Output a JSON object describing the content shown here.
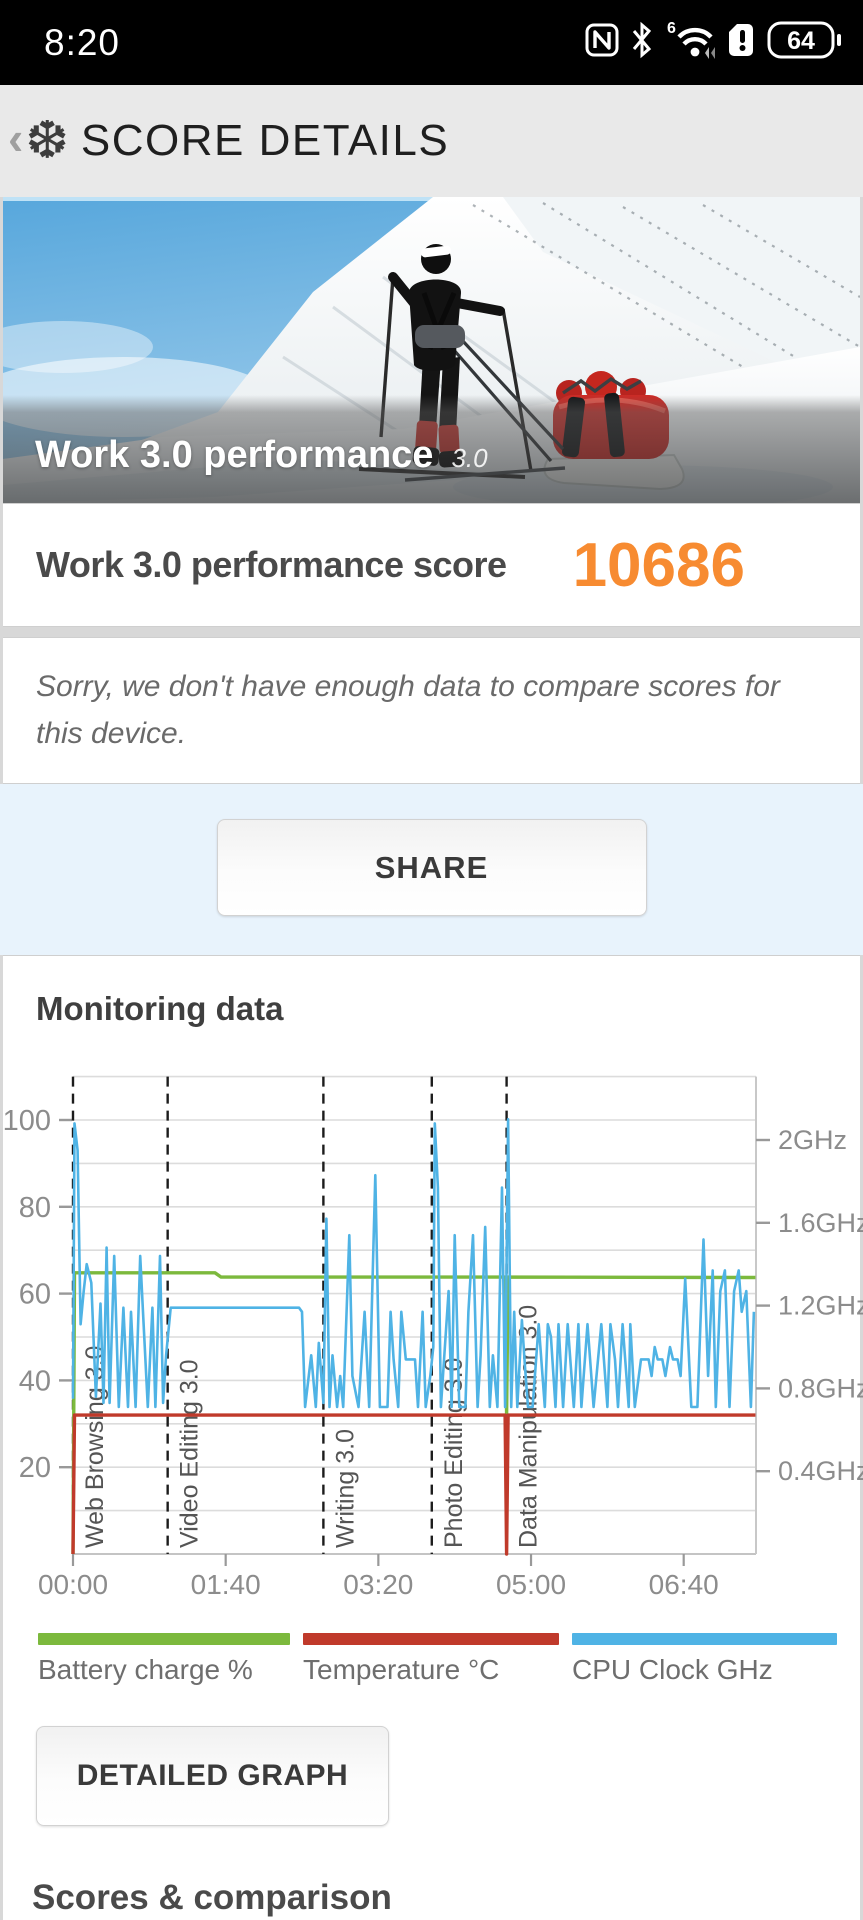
{
  "status_bar": {
    "time": "8:20",
    "battery_level": "64"
  },
  "header": {
    "back_glyph": "‹",
    "title": "SCORE DETAILS"
  },
  "hero": {
    "title": "Work 3.0 performance",
    "version": "3.0"
  },
  "score": {
    "label": "Work 3.0 performance score",
    "value": "10686",
    "accent_color": "#f78b31"
  },
  "note": {
    "text": "Sorry, we don't have enough data to compare scores for this device."
  },
  "share": {
    "label": "SHARE"
  },
  "monitoring": {
    "title": "Monitoring data",
    "detailed_button": "DETAILED GRAPH"
  },
  "scores_heading": "Scores & comparison",
  "chart_data": {
    "type": "line",
    "title": "Monitoring data",
    "x_axis": {
      "unit": "mm:ss",
      "range_seconds": [
        0,
        447
      ],
      "ticks": [
        {
          "t": 0,
          "label": "00:00"
        },
        {
          "t": 100,
          "label": "01:40"
        },
        {
          "t": 200,
          "label": "03:20"
        },
        {
          "t": 300,
          "label": "05:00"
        },
        {
          "t": 400,
          "label": "06:40"
        }
      ]
    },
    "left_axis": {
      "range": [
        0,
        110
      ],
      "ticks": [
        20,
        40,
        60,
        80,
        100
      ],
      "grid_step": 10
    },
    "right_axis": {
      "range_ghz": [
        0,
        2.3
      ],
      "ticks": [
        {
          "g": 0.4,
          "label": "0.4GHz"
        },
        {
          "g": 0.8,
          "label": "0.8GHz"
        },
        {
          "g": 1.2,
          "label": "1.2GHz"
        },
        {
          "g": 1.6,
          "label": "1.6GHz"
        },
        {
          "g": 2.0,
          "label": "2GHz"
        }
      ]
    },
    "sections": [
      {
        "label": "Web Browsing 3.0",
        "t": 0
      },
      {
        "label": "Video Editing 3.0",
        "t": 62
      },
      {
        "label": "Writing 3.0",
        "t": 164
      },
      {
        "label": "Photo Editing 3.0",
        "t": 235
      },
      {
        "label": "Data Manipulation 3.0",
        "t": 284
      }
    ],
    "series": [
      {
        "name": "Battery charge %",
        "color": "#7cb93d",
        "axis": "left",
        "points": [
          [
            0,
            0
          ],
          [
            1,
            64.8
          ],
          [
            93,
            64.8
          ],
          [
            97,
            63.8
          ],
          [
            283,
            63.8
          ],
          [
            284,
            32
          ],
          [
            285,
            63.8
          ],
          [
            447,
            63.7
          ]
        ]
      },
      {
        "name": "Temperature °C",
        "color": "#c03a2b",
        "axis": "left",
        "points": [
          [
            0,
            0
          ],
          [
            1,
            32
          ],
          [
            283,
            32
          ],
          [
            284,
            0
          ],
          [
            285,
            32
          ],
          [
            447,
            32
          ]
        ]
      },
      {
        "name": "CPU Clock GHz",
        "color": "#4fb3e5",
        "axis": "right",
        "points": [
          [
            0,
            0.75
          ],
          [
            1,
            2.08
          ],
          [
            3,
            1.95
          ],
          [
            5,
            1.11
          ],
          [
            7,
            1.27
          ],
          [
            9,
            1.4
          ],
          [
            12,
            1.31
          ],
          [
            15,
            0.76
          ],
          [
            18,
            1.21
          ],
          [
            20,
            0.73
          ],
          [
            22,
            1.48
          ],
          [
            24,
            0.73
          ],
          [
            27,
            1.44
          ],
          [
            30,
            0.71
          ],
          [
            33,
            1.19
          ],
          [
            36,
            0.71
          ],
          [
            38,
            1.17
          ],
          [
            41,
            0.71
          ],
          [
            44,
            1.44
          ],
          [
            46,
            1.15
          ],
          [
            49,
            0.71
          ],
          [
            52,
            1.19
          ],
          [
            54,
            0.71
          ],
          [
            57,
            1.44
          ],
          [
            59,
            0.73
          ],
          [
            61,
            0.96
          ],
          [
            64,
            1.19
          ],
          [
            148,
            1.19
          ],
          [
            150,
            1.17
          ],
          [
            152,
            0.71
          ],
          [
            156,
            0.96
          ],
          [
            159,
            0.71
          ],
          [
            161,
            1.02
          ],
          [
            164,
            0.73
          ],
          [
            166,
            1.62
          ],
          [
            168,
            0.71
          ],
          [
            170,
            0.96
          ],
          [
            173,
            0.71
          ],
          [
            175,
            0.86
          ],
          [
            177,
            0.71
          ],
          [
            181,
            1.54
          ],
          [
            183,
            0.86
          ],
          [
            187,
            0.71
          ],
          [
            191,
            1.17
          ],
          [
            194,
            0.71
          ],
          [
            198,
            1.83
          ],
          [
            201,
            0.71
          ],
          [
            206,
            0.71
          ],
          [
            208,
            1.17
          ],
          [
            210,
            0.94
          ],
          [
            213,
            0.71
          ],
          [
            215,
            1.17
          ],
          [
            218,
            0.94
          ],
          [
            224,
            0.94
          ],
          [
            226,
            0.71
          ],
          [
            229,
            1.17
          ],
          [
            231,
            0.71
          ],
          [
            234,
            0.86
          ],
          [
            236,
            1.0
          ],
          [
            237,
            2.08
          ],
          [
            239,
            1.77
          ],
          [
            241,
            0.71
          ],
          [
            246,
            1.27
          ],
          [
            248,
            0.71
          ],
          [
            250,
            1.54
          ],
          [
            253,
            0.71
          ],
          [
            257,
            0.71
          ],
          [
            259,
            1.17
          ],
          [
            262,
            1.54
          ],
          [
            265,
            0.71
          ],
          [
            267,
            0.96
          ],
          [
            270,
            1.58
          ],
          [
            273,
            0.71
          ],
          [
            275,
            0.96
          ],
          [
            278,
            0.71
          ],
          [
            281,
            1.77
          ],
          [
            283,
            0.71
          ],
          [
            285,
            2.1
          ],
          [
            287,
            0.71
          ],
          [
            289,
            1.17
          ],
          [
            291,
            0.71
          ],
          [
            294,
            1.13
          ],
          [
            296,
            0.91
          ],
          [
            298,
            0.71
          ],
          [
            301,
            0.71
          ],
          [
            305,
            1.11
          ],
          [
            309,
            0.71
          ],
          [
            311,
            1.11
          ],
          [
            313,
            1.05
          ],
          [
            316,
            0.71
          ],
          [
            318,
            1.11
          ],
          [
            321,
            0.71
          ],
          [
            324,
            1.11
          ],
          [
            328,
            0.71
          ],
          [
            331,
            1.11
          ],
          [
            333,
            0.71
          ],
          [
            337,
            1.11
          ],
          [
            341,
            0.71
          ],
          [
            346,
            1.11
          ],
          [
            350,
            0.71
          ],
          [
            352,
            1.11
          ],
          [
            355,
            0.94
          ],
          [
            357,
            0.71
          ],
          [
            360,
            1.11
          ],
          [
            364,
            0.71
          ],
          [
            365,
            1.11
          ],
          [
            368,
            0.71
          ],
          [
            372,
            0.94
          ],
          [
            377,
            0.94
          ],
          [
            379,
            0.86
          ],
          [
            381,
            1.0
          ],
          [
            383,
            0.94
          ],
          [
            386,
            0.94
          ],
          [
            388,
            0.86
          ],
          [
            391,
            1.0
          ],
          [
            393,
            0.94
          ],
          [
            396,
            0.94
          ],
          [
            398,
            0.86
          ],
          [
            401,
            1.33
          ],
          [
            405,
            0.71
          ],
          [
            409,
            0.71
          ],
          [
            413,
            1.52
          ],
          [
            416,
            0.86
          ],
          [
            419,
            1.37
          ],
          [
            421,
            0.71
          ],
          [
            424,
            1.27
          ],
          [
            427,
            1.37
          ],
          [
            430,
            0.71
          ],
          [
            433,
            1.27
          ],
          [
            436,
            1.37
          ],
          [
            438,
            1.17
          ],
          [
            441,
            1.27
          ],
          [
            444,
            0.71
          ],
          [
            446,
            1.17
          ]
        ]
      }
    ],
    "legend": [
      {
        "label": "Battery charge %",
        "color": "#7cb93d"
      },
      {
        "label": "Temperature °C",
        "color": "#c03a2b"
      },
      {
        "label": "CPU Clock GHz",
        "color": "#4fb3e5"
      }
    ],
    "grid": true,
    "legend_position": "bottom"
  }
}
